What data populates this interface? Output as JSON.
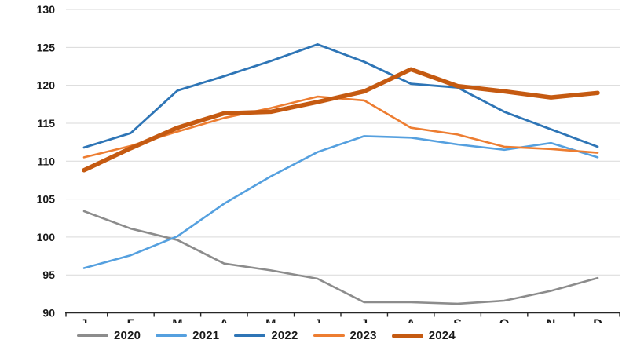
{
  "chart_data": {
    "type": "line",
    "title": "",
    "xlabel": "",
    "ylabel": "",
    "categories": [
      "J",
      "F",
      "M",
      "A",
      "M",
      "J",
      "J",
      "A",
      "S",
      "O",
      "N",
      "D"
    ],
    "y_axis": {
      "min": 90,
      "max": 130,
      "step": 5
    },
    "grid": true,
    "legend_position": "bottom",
    "series": [
      {
        "name": "2020",
        "color": "#8C8C8C",
        "stroke_width": 2.6,
        "thick": false,
        "values": [
          103.4,
          101.1,
          99.6,
          96.5,
          95.6,
          94.5,
          91.4,
          91.4,
          91.2,
          91.6,
          92.9,
          94.6
        ]
      },
      {
        "name": "2021",
        "color": "#55A0DF",
        "stroke_width": 2.6,
        "thick": false,
        "values": [
          95.9,
          97.6,
          100.1,
          104.4,
          108.0,
          111.2,
          113.3,
          113.1,
          112.2,
          111.5,
          112.4,
          110.5
        ]
      },
      {
        "name": "2022",
        "color": "#2E75B6",
        "stroke_width": 2.8,
        "thick": false,
        "values": [
          111.8,
          113.7,
          119.3,
          121.2,
          123.2,
          125.4,
          123.1,
          120.2,
          119.7,
          116.5,
          114.2,
          111.9
        ]
      },
      {
        "name": "2023",
        "color": "#ED7D31",
        "stroke_width": 2.6,
        "thick": false,
        "values": [
          110.5,
          112.0,
          113.9,
          115.7,
          117.0,
          118.5,
          118.0,
          114.4,
          113.5,
          111.9,
          111.6,
          111.1
        ]
      },
      {
        "name": "2024",
        "color": "#C55A11",
        "stroke_width": 5.5,
        "thick": true,
        "values": [
          108.8,
          111.7,
          114.4,
          116.3,
          116.5,
          117.8,
          119.2,
          122.1,
          119.9,
          119.2,
          118.4,
          119.0
        ]
      }
    ],
    "axis_text_color": "#1a1a1a",
    "gridline_color": "#D9D9D9",
    "axis_line_color": "#262626"
  }
}
